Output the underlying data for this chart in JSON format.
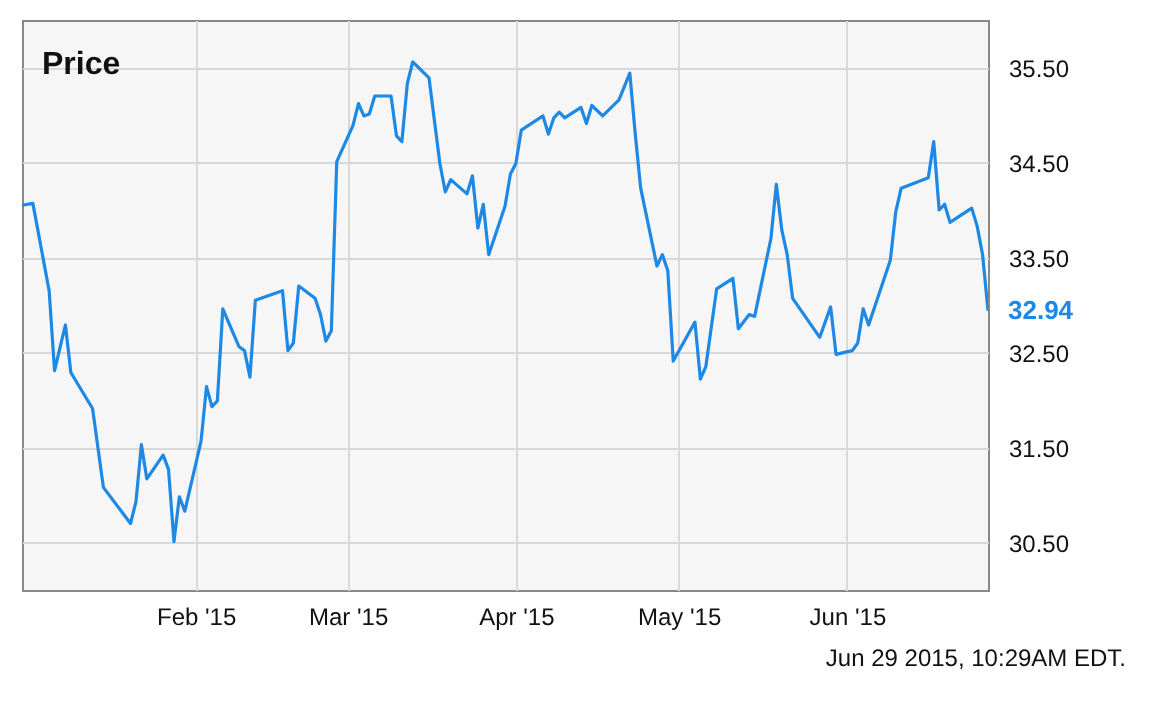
{
  "chart_data": {
    "type": "line",
    "title": "Price",
    "x": [
      "2014-12-31",
      "2015-01-02",
      "2015-01-05",
      "2015-01-06",
      "2015-01-08",
      "2015-01-09",
      "2015-01-13",
      "2015-01-15",
      "2015-01-20",
      "2015-01-21",
      "2015-01-22",
      "2015-01-23",
      "2015-01-26",
      "2015-01-27",
      "2015-01-28",
      "2015-01-29",
      "2015-01-30",
      "2015-02-02",
      "2015-02-03",
      "2015-02-04",
      "2015-02-05",
      "2015-02-06",
      "2015-02-09",
      "2015-02-10",
      "2015-02-11",
      "2015-02-12",
      "2015-02-17",
      "2015-02-18",
      "2015-02-19",
      "2015-02-20",
      "2015-02-23",
      "2015-02-24",
      "2015-02-25",
      "2015-02-26",
      "2015-02-27",
      "2015-03-02",
      "2015-03-03",
      "2015-03-04",
      "2015-03-05",
      "2015-03-06",
      "2015-03-09",
      "2015-03-10",
      "2015-03-11",
      "2015-03-12",
      "2015-03-13",
      "2015-03-16",
      "2015-03-18",
      "2015-03-19",
      "2015-03-20",
      "2015-03-23",
      "2015-03-24",
      "2015-03-25",
      "2015-03-26",
      "2015-03-27",
      "2015-03-30",
      "2015-03-31",
      "2015-04-01",
      "2015-04-02",
      "2015-04-06",
      "2015-04-07",
      "2015-04-08",
      "2015-04-09",
      "2015-04-10",
      "2015-04-13",
      "2015-04-14",
      "2015-04-15",
      "2015-04-17",
      "2015-04-20",
      "2015-04-22",
      "2015-04-23",
      "2015-04-24",
      "2015-04-27",
      "2015-04-28",
      "2015-04-29",
      "2015-04-30",
      "2015-05-04",
      "2015-05-05",
      "2015-05-06",
      "2015-05-08",
      "2015-05-11",
      "2015-05-12",
      "2015-05-14",
      "2015-05-15",
      "2015-05-18",
      "2015-05-19",
      "2015-05-20",
      "2015-05-21",
      "2015-05-22",
      "2015-05-27",
      "2015-05-29",
      "2015-05-30",
      "2015-06-02",
      "2015-06-03",
      "2015-06-04",
      "2015-06-05",
      "2015-06-09",
      "2015-06-10",
      "2015-06-11",
      "2015-06-16",
      "2015-06-17",
      "2015-06-18",
      "2015-06-19",
      "2015-06-20",
      "2015-06-24",
      "2015-06-25",
      "2015-06-26",
      "2015-06-27"
    ],
    "series": [
      {
        "color": "#1e88e5",
        "values": [
          34.05,
          34.07,
          33.15,
          32.31,
          32.79,
          32.29,
          31.91,
          31.08,
          30.7,
          30.93,
          31.53,
          31.17,
          31.42,
          31.27,
          30.51,
          30.98,
          30.83,
          31.57,
          32.14,
          31.93,
          31.99,
          32.96,
          32.56,
          32.52,
          32.24,
          33.05,
          33.15,
          32.52,
          32.6,
          33.2,
          33.07,
          32.9,
          32.62,
          32.73,
          34.51,
          34.89,
          35.12,
          34.99,
          35.01,
          35.2,
          35.2,
          34.78,
          34.72,
          35.33,
          35.56,
          35.39,
          34.49,
          34.19,
          34.32,
          34.17,
          34.36,
          33.81,
          34.06,
          33.53,
          34.04,
          34.38,
          34.49,
          34.84,
          34.99,
          34.8,
          34.97,
          35.03,
          34.97,
          35.08,
          34.91,
          35.1,
          34.99,
          35.16,
          35.44,
          34.8,
          34.23,
          33.41,
          33.53,
          33.36,
          32.41,
          32.82,
          32.22,
          32.35,
          33.17,
          33.28,
          32.75,
          32.9,
          32.88,
          33.7,
          34.27,
          33.79,
          33.53,
          33.07,
          32.66,
          32.98,
          32.48,
          32.52,
          32.6,
          32.96,
          32.79,
          33.47,
          33.98,
          34.23,
          34.34,
          34.72,
          34.0,
          34.06,
          33.87,
          34.02,
          33.83,
          33.53,
          32.94
        ]
      }
    ],
    "xlim": [
      "2014-12-31",
      "2015-06-27"
    ],
    "xticks": [
      {
        "value": "2015-02-01",
        "label": "Feb '15"
      },
      {
        "value": "2015-03-01",
        "label": "Mar '15"
      },
      {
        "value": "2015-04-01",
        "label": "Apr '15"
      },
      {
        "value": "2015-05-01",
        "label": "May '15"
      },
      {
        "value": "2015-06-01",
        "label": "Jun '15"
      }
    ],
    "ylim": [
      30,
      36
    ],
    "yticks": [
      {
        "value": 30.5,
        "label": "30.50"
      },
      {
        "value": 31.5,
        "label": "31.50"
      },
      {
        "value": 32.5,
        "label": "32.50"
      },
      {
        "value": 33.5,
        "label": "33.50"
      },
      {
        "value": 34.5,
        "label": "34.50"
      },
      {
        "value": 35.5,
        "label": "35.50"
      }
    ],
    "grid": true,
    "annotations": [
      {
        "text": "32.94",
        "x": "2015-06-27",
        "y": 32.94
      },
      "Jun 29 2015, 10:29AM EDT."
    ]
  }
}
